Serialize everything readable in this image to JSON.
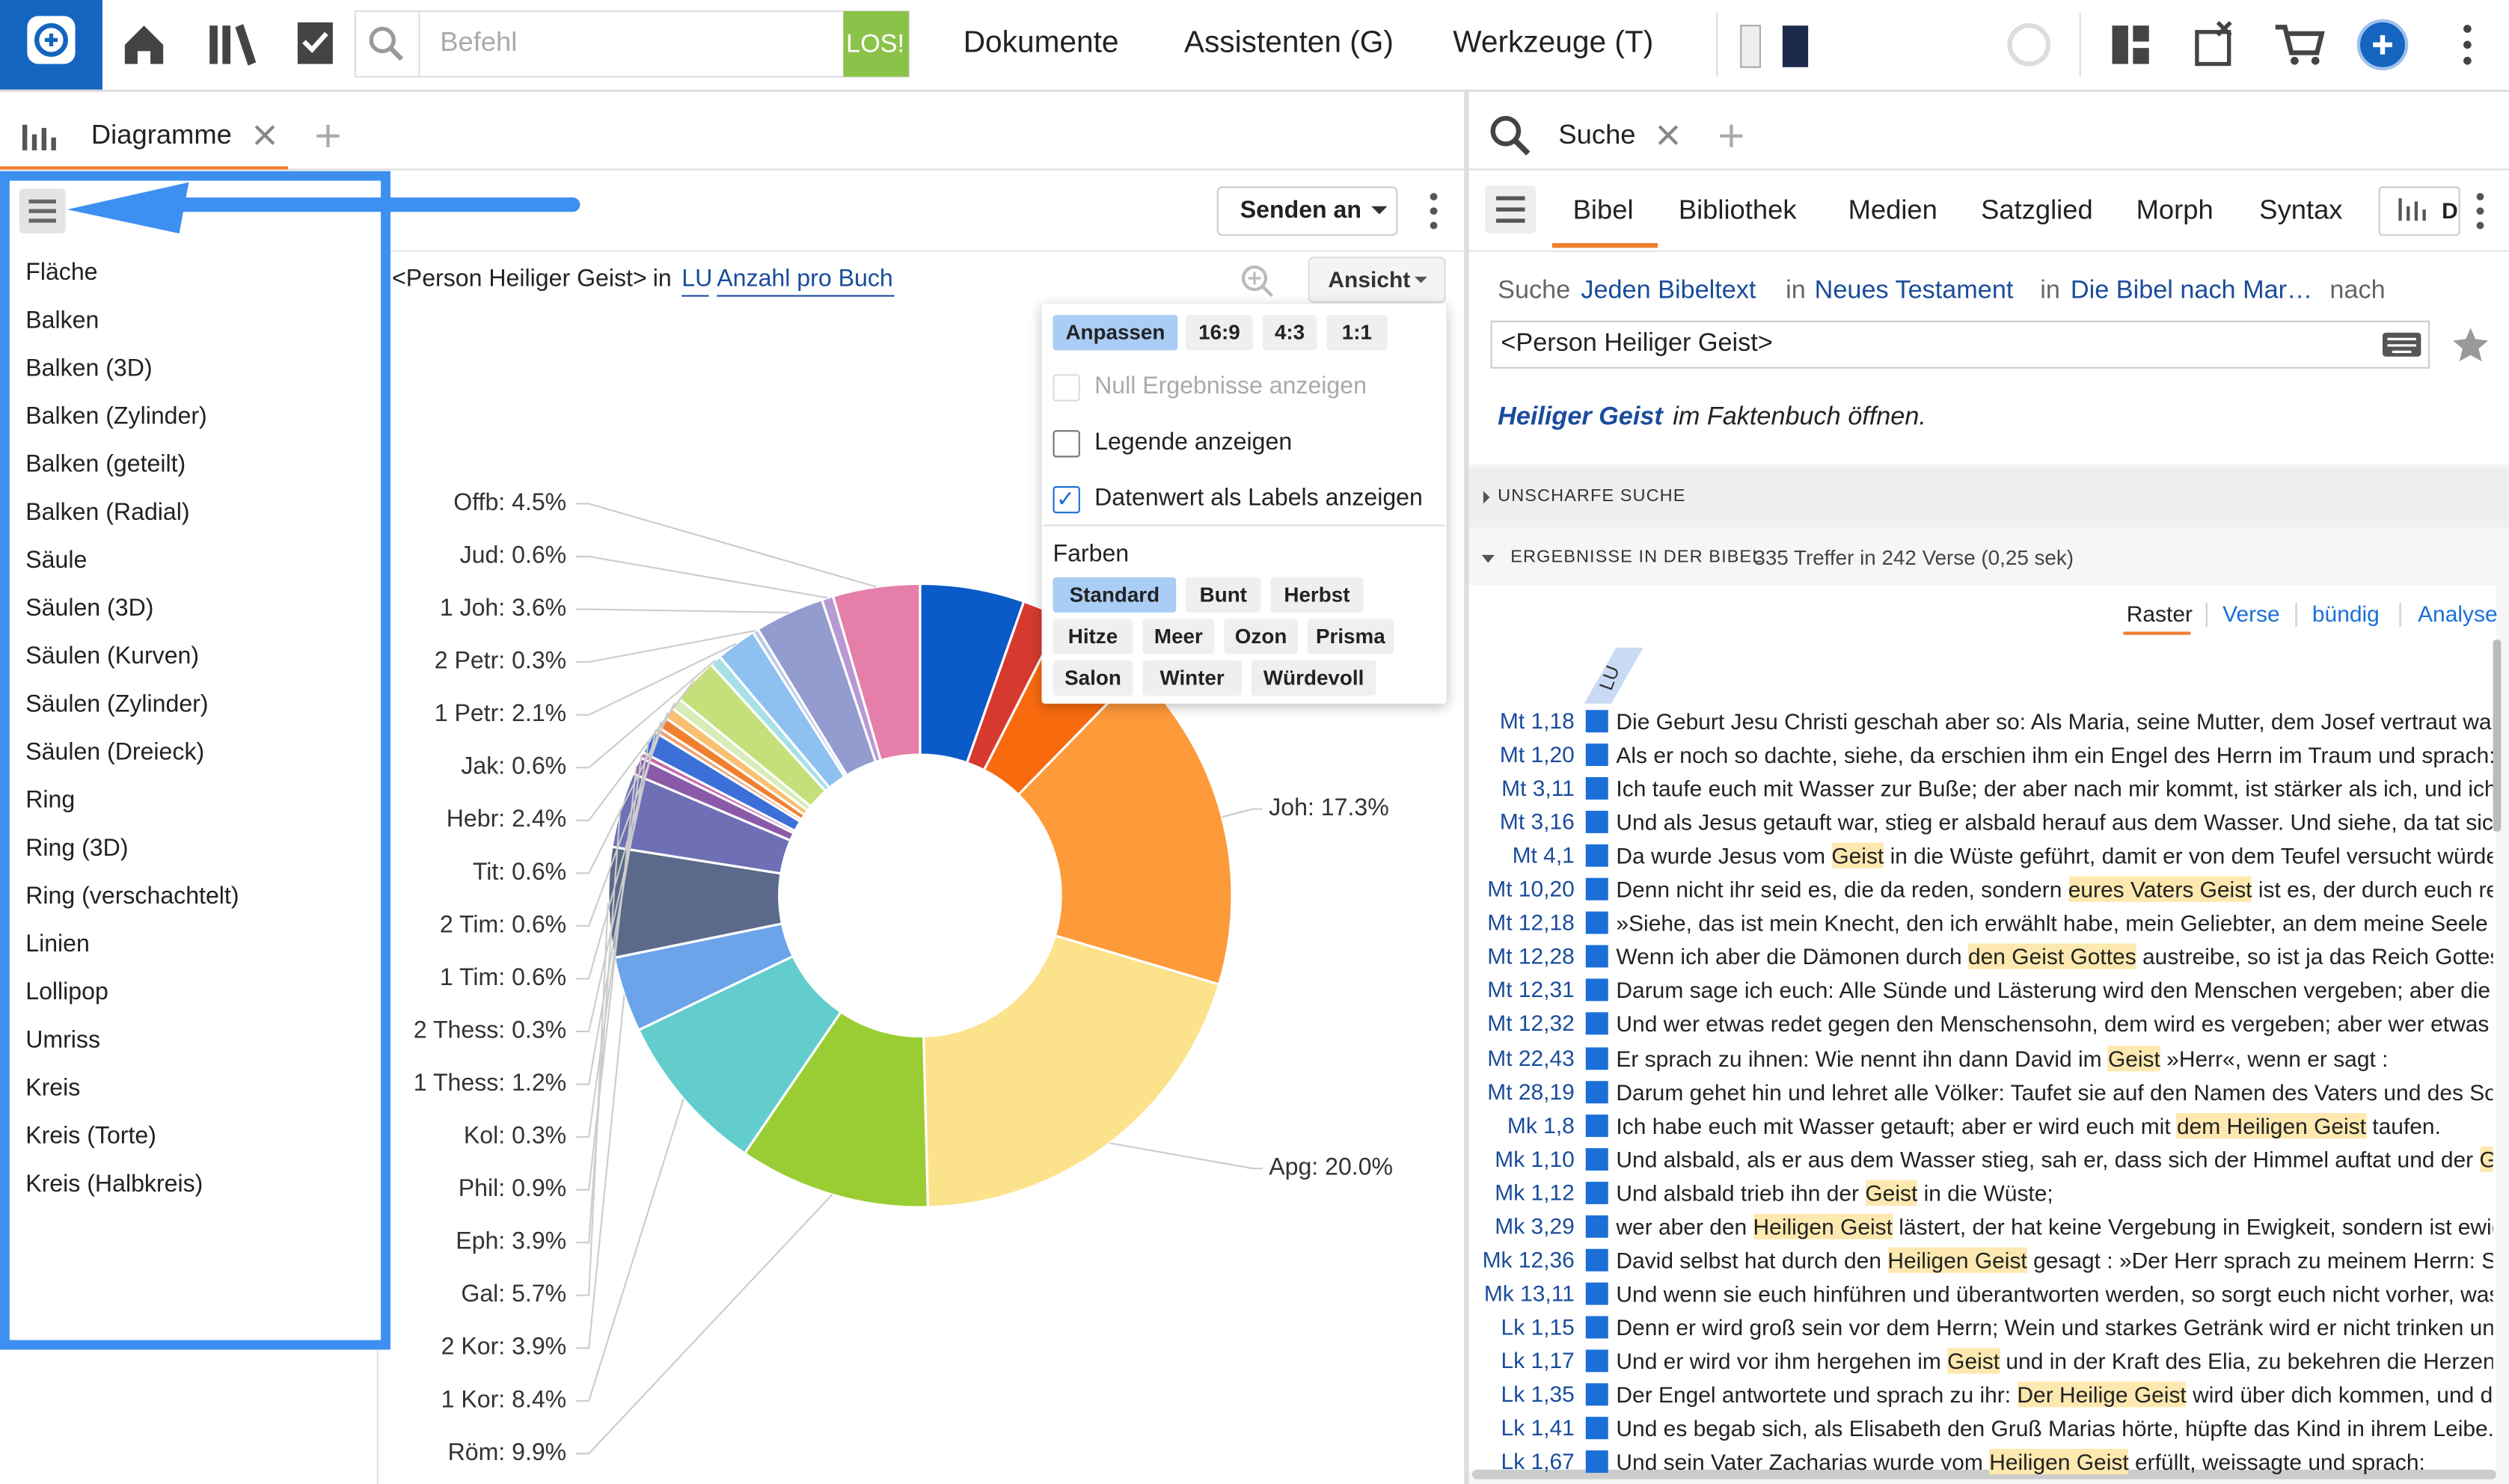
{
  "toolbar": {
    "placeholder": "Befehl",
    "go": "LOS!",
    "menus": [
      "Dokumente",
      "Assistenten (G)",
      "Werkzeuge (T)"
    ]
  },
  "left_tab": "Diagramme",
  "send_button": "Senden an",
  "view_button": "Ansicht",
  "query": {
    "text": "<Person Heiliger Geist>",
    "in": "in",
    "version": "LU",
    "mode": "Anzahl pro Buch"
  },
  "chart_types": [
    "Fläche",
    "Balken",
    "Balken (3D)",
    "Balken (Zylinder)",
    "Balken (geteilt)",
    "Balken (Radial)",
    "Säule",
    "Säulen (3D)",
    "Säulen (Kurven)",
    "Säulen (Zylinder)",
    "Säulen (Dreieck)",
    "Ring",
    "Ring (3D)",
    "Ring (verschachtelt)",
    "Linien",
    "Lollipop",
    "Umriss",
    "Kreis",
    "Kreis (Torte)",
    "Kreis (Halbkreis)"
  ],
  "popup": {
    "ratios": [
      "Anpassen",
      "16:9",
      "4:3",
      "1:1"
    ],
    "selected_ratio": 0,
    "options": [
      "Null Ergebnisse anzeigen",
      "Legende anzeigen",
      "Datenwert als Labels anzeigen"
    ],
    "checked": [
      false,
      false,
      true
    ],
    "disabled": [
      true,
      false,
      false
    ],
    "colors_label": "Farben",
    "palettes": [
      [
        "Standard",
        "Bunt",
        "Herbst"
      ],
      [
        "Hitze",
        "Meer",
        "Ozon",
        "Prisma"
      ],
      [
        "Salon",
        "Winter",
        "Würdevoll"
      ]
    ],
    "selected_palette": 0
  },
  "chart_data": {
    "type": "donut",
    "categories": [
      null,
      null,
      null,
      "Joh",
      "Apg",
      "Röm",
      "1 Kor",
      "2 Kor",
      "Gal",
      "Eph",
      "Phil",
      "Kol",
      "1 Thess",
      "2 Thess",
      "1 Tim",
      "2 Tim",
      "Tit",
      "Hebr",
      "Jak",
      "1 Petr",
      "2 Petr",
      "1 Joh",
      "Jud",
      "Offb"
    ],
    "values": [
      5.4,
      2.1,
      4.8,
      17.3,
      20.0,
      9.9,
      8.4,
      3.9,
      5.7,
      3.9,
      0.9,
      0.3,
      1.2,
      0.3,
      0.6,
      0.6,
      0.6,
      2.4,
      0.6,
      2.1,
      0.3,
      3.6,
      0.6,
      4.5
    ],
    "value_labels": [
      null,
      null,
      null,
      "Joh: 17.3%",
      "Apg: 20.0%",
      "Röm: 9.9%",
      "1 Kor: 8.4%",
      "2 Kor: 3.9%",
      "Gal: 5.7%",
      "Eph: 3.9%",
      "Phil: 0.9%",
      "Kol: 0.3%",
      "1 Thess: 1.2%",
      "2 Thess: 0.3%",
      "1 Tim: 0.6%",
      "2 Tim: 0.6%",
      "Tit: 0.6%",
      "Hebr: 2.4%",
      "Jak: 0.6%",
      "1 Petr: 2.1%",
      "2 Petr: 0.3%",
      "1 Joh: 3.6%",
      "Jud: 0.6%",
      "Offb: 4.5%"
    ],
    "colors": [
      "#0a5ac8",
      "#d63a2f",
      "#f86a0e",
      "#fd9a3a",
      "#fde28c",
      "#9acd34",
      "#62cdcc",
      "#6ba4e8",
      "#5b6a8a",
      "#6e6fb5",
      "#8a5aa8",
      "#c46aa8",
      "#3c6fd8",
      "#f0a070",
      "#f08030",
      "#f8c070",
      "#d8ecb8",
      "#c5e07a",
      "#a8e0e8",
      "#8ec0f0",
      "#bcc8e8",
      "#939bcf",
      "#b79ad4",
      "#e57ea8"
    ]
  },
  "right_tab": "Suche",
  "subtabs": [
    "Bibel",
    "Bibliothek",
    "Medien",
    "Satzglied",
    "Morph",
    "Syntax",
    "D"
  ],
  "search_line": [
    "Suche",
    "Jeden Bibeltext",
    "in",
    "Neues Testament",
    "in",
    "Die Bibel nach Mar…",
    "nach"
  ],
  "search_input": "<Person Heiliger Geist>",
  "fact": {
    "term": "Heiliger Geist",
    "rest": " im Faktenbuch öffnen."
  },
  "sections": [
    "UNSCHARFE SUCHE",
    "ERGEBNISSE IN DER BIBEL"
  ],
  "result_count": "335 Treffer in 242 Verse (0,25 sek)",
  "views": [
    "Raster",
    "Verse",
    "bündig",
    "Analyse"
  ],
  "column": "LU",
  "verses": [
    {
      "ref": "Mt 1,18",
      "parts": [
        "Die Geburt Jesu Christi geschah aber so: Als Maria, seine Mutter, dem Josef vertraut war, fa"
      ]
    },
    {
      "ref": "Mt 1,20",
      "parts": [
        "Als er noch so dachte, siehe, da erschien ihm ein Engel des Herrn im Traum und sprach: Jo"
      ]
    },
    {
      "ref": "Mt 3,11",
      "parts": [
        "Ich taufe euch mit Wasser zur Buße; der aber nach mir kommt, ist stärker als ich, und ich bi"
      ]
    },
    {
      "ref": "Mt 3,16",
      "parts": [
        "Und als Jesus getauft war, stieg er alsbald herauf aus dem Wasser. Und siehe, da tat sich ih"
      ]
    },
    {
      "ref": "Mt 4,1",
      "parts": [
        "Da wurde Jesus vom ",
        "Geist",
        " in die Wüste geführt, damit er von dem Teufel versucht würde."
      ]
    },
    {
      "ref": "Mt 10,20",
      "parts": [
        "Denn nicht ihr seid es, die da reden, sondern ",
        "eures Vaters Geist",
        " ist es, der durch euch redet"
      ]
    },
    {
      "ref": "Mt 12,18",
      "parts": [
        "»Siehe, das ist mein Knecht, den ich erwählt habe, mein Geliebter, an dem meine Seele Wo"
      ]
    },
    {
      "ref": "Mt 12,28",
      "parts": [
        "Wenn ich aber die Dämonen durch ",
        "den Geist Gottes",
        " austreibe, so ist ja das Reich Gottes zu"
      ]
    },
    {
      "ref": "Mt 12,31",
      "parts": [
        "Darum sage ich euch: Alle Sünde und Lästerung wird den Menschen vergeben; aber die Läs"
      ]
    },
    {
      "ref": "Mt 12,32",
      "parts": [
        "Und wer etwas redet gegen den Menschensohn, dem wird es vergeben; aber wer etwas red"
      ]
    },
    {
      "ref": "Mt 22,43",
      "parts": [
        "Er sprach zu ihnen: Wie nennt ihn dann David im ",
        "Geist",
        " »Herr«, wenn er sagt :"
      ]
    },
    {
      "ref": "Mt 28,19",
      "parts": [
        "Darum gehet hin und lehret alle Völker: Taufet sie auf den Namen des Vaters und des Sohn"
      ]
    },
    {
      "ref": "Mk 1,8",
      "parts": [
        "Ich habe euch mit Wasser getauft; aber er wird euch mit ",
        "dem Heiligen Geist",
        " taufen."
      ]
    },
    {
      "ref": "Mk 1,10",
      "parts": [
        "Und alsbald, als er aus dem Wasser stieg, sah er, dass sich der Himmel auftat und der ",
        "Geist"
      ]
    },
    {
      "ref": "Mk 1,12",
      "parts": [
        "Und alsbald trieb ihn der ",
        "Geist",
        " in die Wüste;"
      ]
    },
    {
      "ref": "Mk 3,29",
      "parts": [
        "wer aber den ",
        "Heiligen Geist",
        " lästert, der hat keine Vergebung in Ewigkeit, sondern ist ewige"
      ]
    },
    {
      "ref": "Mk 12,36",
      "parts": [
        "David selbst hat durch den ",
        "Heiligen Geist",
        " gesagt : »Der Herr sprach zu meinem Herrn: Setze"
      ]
    },
    {
      "ref": "Mk 13,11",
      "parts": [
        "Und wenn sie euch hinführen und überantworten werden, so sorgt euch nicht vorher, was"
      ]
    },
    {
      "ref": "Lk 1,15",
      "parts": [
        "Denn er wird groß sein vor dem Herrn; Wein und starkes Getränk wird er nicht trinken und"
      ]
    },
    {
      "ref": "Lk 1,17",
      "parts": [
        "Und er wird vor ihm hergehen im ",
        "Geist",
        " und in der Kraft des Elia, zu bekehren die Herzen de"
      ]
    },
    {
      "ref": "Lk 1,35",
      "parts": [
        "Der Engel antwortete und sprach zu ihr: ",
        "Der Heilige Geist",
        " wird über dich kommen, und die"
      ]
    },
    {
      "ref": "Lk 1,41",
      "parts": [
        "Und es begab sich, als Elisabeth den Gruß Marias hörte, hüpfte das Kind in ihrem Leibe. Un"
      ]
    },
    {
      "ref": "Lk 1,67",
      "parts": [
        "Und sein Vater Zacharias wurde vom ",
        "Heiligen Geist",
        " erfüllt, weissagte und sprach:"
      ]
    }
  ]
}
